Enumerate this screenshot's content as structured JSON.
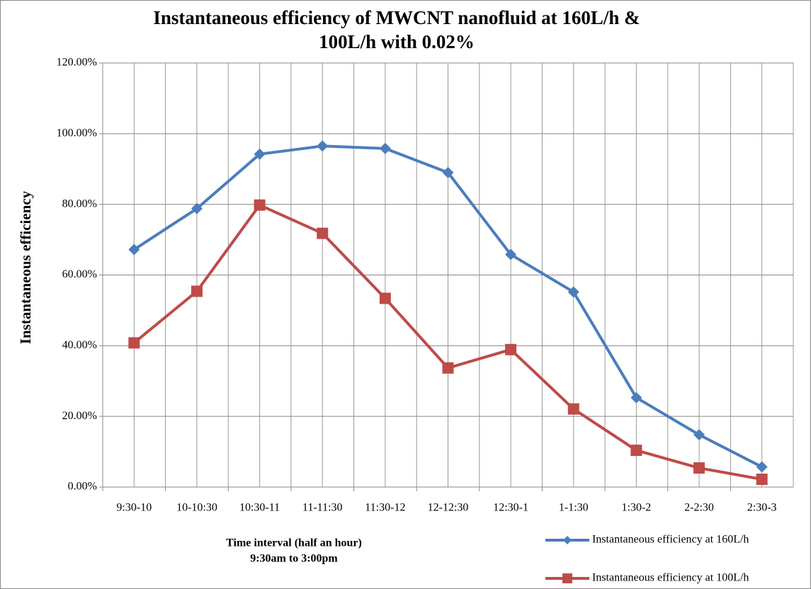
{
  "chart_data": {
    "type": "line",
    "title": [
      "Instantaneous efficiency of MWCNT nanofluid at 160L/h &",
      "100L/h with 0.02%"
    ],
    "y_label": "Instantaneous  efficiency",
    "x_label": [
      "Time interval (half an hour)",
      "9:30am to 3:00pm"
    ],
    "categories": [
      "9:30-10",
      "10-10:30",
      "10:30-11",
      "11-11:30",
      "11:30-12",
      "12-12:30",
      "12:30-1",
      "1-1:30",
      "1:30-2",
      "2-2:30",
      "2:30-3"
    ],
    "series": [
      {
        "name": "Instantaneous efficiency at 160L/h",
        "color": "#4a7ebb",
        "marker": "diamond",
        "values": [
          67.2,
          78.8,
          94.2,
          96.5,
          95.8,
          89.0,
          65.8,
          55.2,
          25.3,
          14.8,
          5.7
        ]
      },
      {
        "name": "Instantaneous efficiency at 100L/h",
        "color": "#be4b48",
        "marker": "square",
        "values": [
          40.8,
          55.4,
          79.8,
          71.8,
          53.4,
          33.7,
          38.9,
          22.1,
          10.4,
          5.4,
          2.2
        ]
      }
    ],
    "ylim": [
      0,
      120
    ],
    "yticks": [
      {
        "value": 0,
        "label": "0.00%"
      },
      {
        "value": 20,
        "label": "20.00%"
      },
      {
        "value": 40,
        "label": "40.00%"
      },
      {
        "value": 60,
        "label": "60.00%"
      },
      {
        "value": 80,
        "label": "80.00%"
      },
      {
        "value": 100,
        "label": "100.00%"
      },
      {
        "value": 120,
        "label": "120.00%"
      }
    ],
    "grid": true,
    "legend": "bottom-right"
  }
}
